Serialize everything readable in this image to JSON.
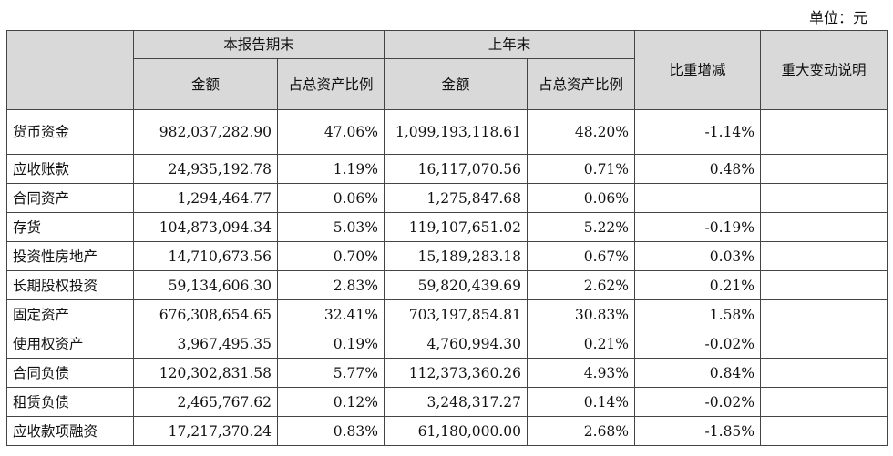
{
  "unit_label": "单位：元",
  "headers": {
    "group_current": "本报告期末",
    "group_prior": "上年末",
    "amount": "金额",
    "ratio": "占总资产比例",
    "change": "比重增减",
    "note": "重大变动说明"
  },
  "rows": [
    {
      "item": "货币资金",
      "cur_amount": "982,037,282.90",
      "cur_ratio": "47.06%",
      "prior_amount": "1,099,193,118.61",
      "prior_ratio": "48.20%",
      "change": "-1.14%",
      "note": ""
    },
    {
      "item": "应收账款",
      "cur_amount": "24,935,192.78",
      "cur_ratio": "1.19%",
      "prior_amount": "16,117,070.56",
      "prior_ratio": "0.71%",
      "change": "0.48%",
      "note": ""
    },
    {
      "item": "合同资产",
      "cur_amount": "1,294,464.77",
      "cur_ratio": "0.06%",
      "prior_amount": "1,275,847.68",
      "prior_ratio": "0.06%",
      "change": "",
      "note": ""
    },
    {
      "item": "存货",
      "cur_amount": "104,873,094.34",
      "cur_ratio": "5.03%",
      "prior_amount": "119,107,651.02",
      "prior_ratio": "5.22%",
      "change": "-0.19%",
      "note": ""
    },
    {
      "item": "投资性房地产",
      "cur_amount": "14,710,673.56",
      "cur_ratio": "0.70%",
      "prior_amount": "15,189,283.18",
      "prior_ratio": "0.67%",
      "change": "0.03%",
      "note": ""
    },
    {
      "item": "长期股权投资",
      "cur_amount": "59,134,606.30",
      "cur_ratio": "2.83%",
      "prior_amount": "59,820,439.69",
      "prior_ratio": "2.62%",
      "change": "0.21%",
      "note": ""
    },
    {
      "item": "固定资产",
      "cur_amount": "676,308,654.65",
      "cur_ratio": "32.41%",
      "prior_amount": "703,197,854.81",
      "prior_ratio": "30.83%",
      "change": "1.58%",
      "note": ""
    },
    {
      "item": "使用权资产",
      "cur_amount": "3,967,495.35",
      "cur_ratio": "0.19%",
      "prior_amount": "4,760,994.30",
      "prior_ratio": "0.21%",
      "change": "-0.02%",
      "note": ""
    },
    {
      "item": "合同负债",
      "cur_amount": "120,302,831.58",
      "cur_ratio": "5.77%",
      "prior_amount": "112,373,360.26",
      "prior_ratio": "4.93%",
      "change": "0.84%",
      "note": ""
    },
    {
      "item": "租赁负债",
      "cur_amount": "2,465,767.62",
      "cur_ratio": "0.12%",
      "prior_amount": "3,248,317.27",
      "prior_ratio": "0.14%",
      "change": "-0.02%",
      "note": ""
    },
    {
      "item": "应收款项融资",
      "cur_amount": "17,217,370.24",
      "cur_ratio": "0.83%",
      "prior_amount": "61,180,000.00",
      "prior_ratio": "2.68%",
      "change": "-1.85%",
      "note": ""
    }
  ]
}
